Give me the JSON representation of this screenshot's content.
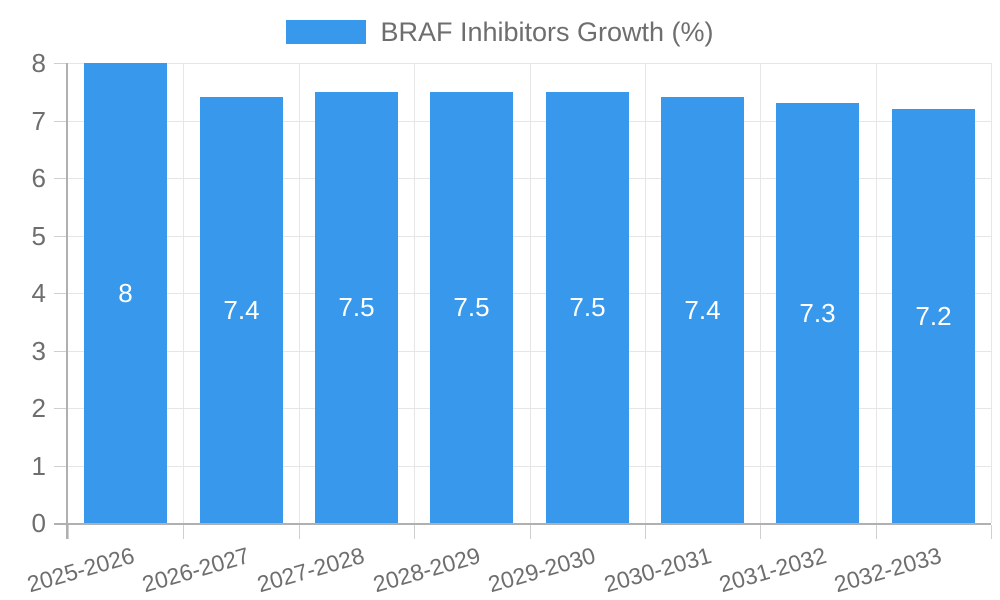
{
  "chart_data": {
    "type": "bar",
    "title": "",
    "legend": {
      "label": "BRAF Inhibitors Growth (%)",
      "position": "top"
    },
    "categories": [
      "2025-2026",
      "2026-2027",
      "2027-2028",
      "2028-2029",
      "2029-2030",
      "2030-2031",
      "2031-2032",
      "2032-2033"
    ],
    "series": [
      {
        "name": "BRAF Inhibitors Growth (%)",
        "values": [
          8,
          7.4,
          7.5,
          7.5,
          7.5,
          7.4,
          7.3,
          7.2
        ],
        "value_labels": [
          "8",
          "7.4",
          "7.5",
          "7.5",
          "7.5",
          "7.4",
          "7.3",
          "7.2"
        ]
      }
    ],
    "xlabel": "",
    "ylabel": "",
    "ylim": [
      0,
      8
    ],
    "yticks": [
      "0",
      "1",
      "2",
      "3",
      "4",
      "5",
      "6",
      "7",
      "8"
    ],
    "grid": true,
    "legend_position": "top",
    "value_label_position": "inside-center",
    "colors": {
      "bar": "#3899EC",
      "grid": "#e6e6e6",
      "tick": "#cfcfcf",
      "axis": "#b0b0b0",
      "text": "#6e6e6e",
      "value_label": "#ffffff",
      "background": "#ffffff"
    }
  }
}
